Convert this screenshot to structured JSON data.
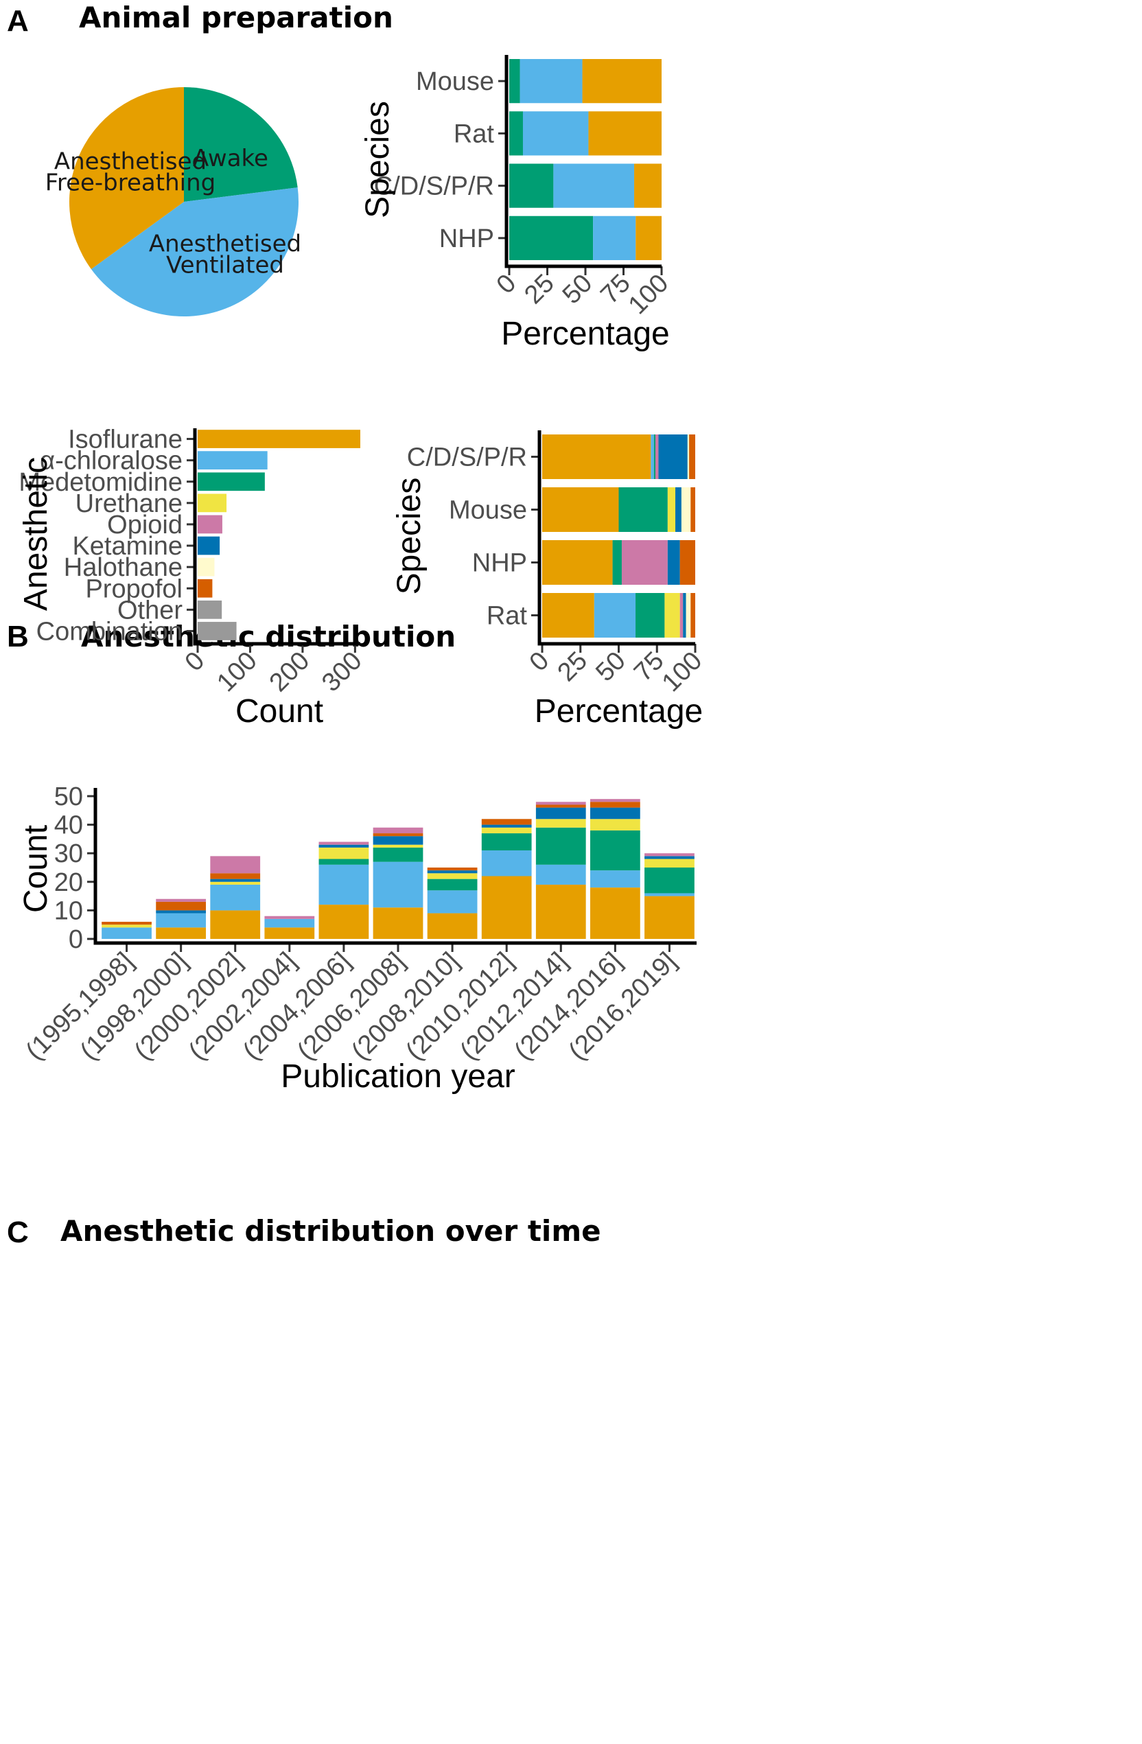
{
  "colors": {
    "Isoflurane": "#E69F00",
    "alpha-chloralose": "#56B4E9",
    "Medetomidine": "#009E73",
    "Urethane": "#F0E442",
    "Opioid": "#CC79A7",
    "Ketamine": "#0072B2",
    "Halothane": "#FFFACD",
    "Propofol": "#D55E00",
    "Other": "#999999",
    "Combination": "#999999",
    "Awake": "#009E73",
    "Ventilated": "#56B4E9",
    "FreeBreathing": "#E69F00"
  },
  "panels": {
    "A": {
      "letter": "A",
      "title": "Animal preparation"
    },
    "B": {
      "letter": "B",
      "title": "Anesthetic distribution"
    },
    "C": {
      "letter": "C",
      "title": "Anesthetic distribution over time"
    }
  },
  "chart_data": [
    {
      "id": "A-pie",
      "type": "pie",
      "slices": [
        {
          "key": "Awake",
          "label_lines": [
            "Awake"
          ],
          "value": 23
        },
        {
          "key": "Ventilated",
          "label_lines": [
            "Anesthetised",
            "Ventilated"
          ],
          "value": 42
        },
        {
          "key": "FreeBreathing",
          "label_lines": [
            "Anesthetised",
            "Free-breathing"
          ],
          "value": 35
        }
      ]
    },
    {
      "id": "A-species",
      "type": "bar",
      "orientation": "horizontal",
      "stacked": true,
      "categories": [
        "Mouse",
        "Rat",
        "C/D/S/P/R",
        "NHP"
      ],
      "series": [
        {
          "key": "Awake",
          "values": [
            7,
            9,
            29,
            55
          ]
        },
        {
          "key": "Ventilated",
          "values": [
            41,
            43,
            53,
            28
          ]
        },
        {
          "key": "FreeBreathing",
          "values": [
            52,
            48,
            18,
            17
          ]
        }
      ],
      "xlabel": "Percentage",
      "ylabel": "Species",
      "xticks": [
        "0",
        "25",
        "50",
        "75",
        "100"
      ],
      "xlim": [
        0,
        100
      ]
    },
    {
      "id": "B-count",
      "type": "bar",
      "orientation": "horizontal",
      "categories": [
        "Isoflurane",
        "α-chloralose",
        "Medetomidine",
        "Urethane",
        "Opioid",
        "Ketamine",
        "Halothane",
        "Propofol",
        "Other",
        "Combination"
      ],
      "color_keys": [
        "Isoflurane",
        "alpha-chloralose",
        "Medetomidine",
        "Urethane",
        "Opioid",
        "Ketamine",
        "Halothane",
        "Propofol",
        "Other",
        "Combination"
      ],
      "values": [
        310,
        133,
        128,
        55,
        47,
        42,
        32,
        28,
        46,
        74
      ],
      "xlabel": "Count",
      "ylabel": "Anesthetic",
      "xticks": [
        "0",
        "100",
        "200",
        "300"
      ],
      "xlim": [
        0,
        310
      ]
    },
    {
      "id": "B-species",
      "type": "bar",
      "orientation": "horizontal",
      "stacked": true,
      "categories": [
        "C/D/S/P/R",
        "Mouse",
        "NHP",
        "Rat"
      ],
      "series": [
        {
          "key": "Isoflurane",
          "values": [
            71,
            50,
            46,
            34
          ]
        },
        {
          "key": "alpha-chloralose",
          "values": [
            2,
            0,
            0,
            27
          ]
        },
        {
          "key": "Medetomidine",
          "values": [
            1,
            32,
            6,
            19
          ]
        },
        {
          "key": "Urethane",
          "values": [
            0,
            5,
            0,
            10
          ]
        },
        {
          "key": "Opioid",
          "values": [
            2,
            0,
            30,
            2
          ]
        },
        {
          "key": "Ketamine",
          "values": [
            19,
            4,
            8,
            2
          ]
        },
        {
          "key": "Halothane",
          "values": [
            1,
            6,
            0,
            3
          ]
        },
        {
          "key": "Propofol",
          "values": [
            4,
            3,
            10,
            3
          ]
        }
      ],
      "xlabel": "Percentage",
      "ylabel": "Species",
      "xticks": [
        "0",
        "25",
        "50",
        "75",
        "100"
      ],
      "xlim": [
        0,
        100
      ]
    },
    {
      "id": "C-time",
      "type": "bar",
      "stacked": true,
      "categories": [
        "(1995,1998]",
        "(1998,2000]",
        "(2000,2002]",
        "(2002,2004]",
        "(2004,2006]",
        "(2006,2008]",
        "(2008,2010]",
        "(2010,2012]",
        "(2012,2014]",
        "(2014,2016]",
        "(2016,2019]"
      ],
      "series": [
        {
          "key": "Isoflurane",
          "values": [
            0,
            4,
            10,
            4,
            12,
            11,
            9,
            22,
            19,
            18,
            15
          ]
        },
        {
          "key": "alpha-chloralose",
          "values": [
            4,
            5,
            9,
            3,
            14,
            16,
            8,
            9,
            7,
            6,
            1
          ]
        },
        {
          "key": "Medetomidine",
          "values": [
            0,
            0,
            0,
            0,
            2,
            5,
            4,
            6,
            13,
            14,
            9
          ]
        },
        {
          "key": "Urethane",
          "values": [
            1,
            0,
            1,
            0,
            4,
            1,
            2,
            2,
            3,
            4,
            3
          ]
        },
        {
          "key": "Ketamine",
          "values": [
            0,
            1,
            1,
            0,
            1,
            3,
            1,
            1,
            4,
            4,
            1
          ]
        },
        {
          "key": "Propofol",
          "values": [
            1,
            3,
            2,
            0,
            0,
            1,
            1,
            2,
            1,
            2,
            0
          ]
        },
        {
          "key": "Opioid",
          "values": [
            0,
            1,
            6,
            1,
            1,
            2,
            0,
            0,
            1,
            1,
            1
          ]
        }
      ],
      "xlabel": "Publication year",
      "ylabel": "Count",
      "yticks": [
        "0",
        "10",
        "20",
        "30",
        "40",
        "50"
      ],
      "ylim": [
        0,
        50
      ]
    }
  ]
}
